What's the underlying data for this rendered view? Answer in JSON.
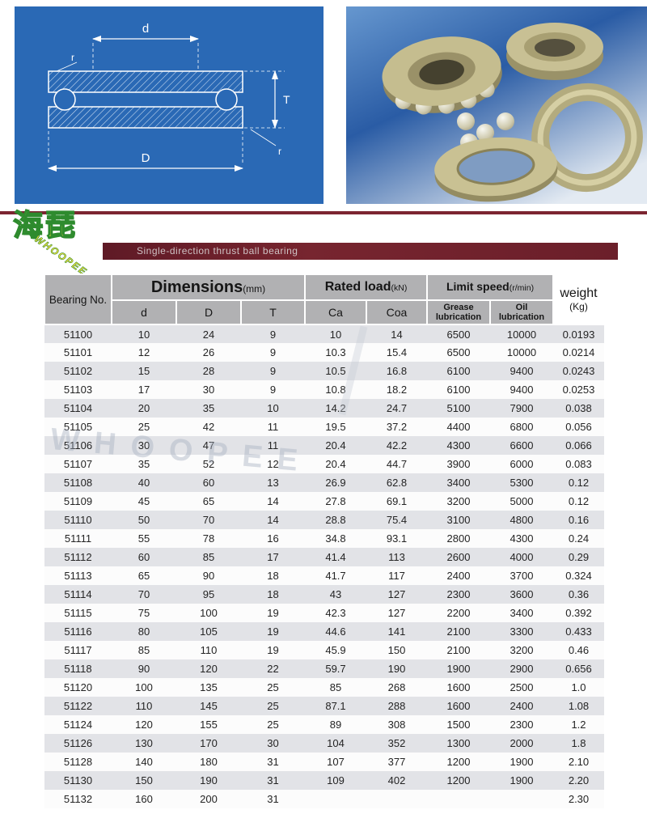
{
  "logo": {
    "characters": "海琵",
    "brand": "WHOOPEE"
  },
  "banner": {
    "text": "Single-direction thrust ball bearing"
  },
  "watermark": "WHOOPEE",
  "diagram": {
    "labels": {
      "d": "d",
      "r_top": "r",
      "T": "T",
      "r_bottom": "r",
      "D": "D"
    }
  },
  "table": {
    "headers": {
      "bearing_no": "Bearing No.",
      "dimensions": "Dimensions",
      "dimensions_unit": "(mm)",
      "rated_load": "Rated load",
      "rated_load_unit": "(kN)",
      "limit_speed": "Limit speed",
      "limit_speed_unit": "(r/min)",
      "weight": "weight",
      "weight_unit": "(Kg)",
      "col_d": "d",
      "col_D": "D",
      "col_T": "T",
      "col_ca": "Ca",
      "col_coa": "Coa",
      "col_grease_1": "Grease",
      "col_grease_2": "lubrication",
      "col_oil_1": "Oil",
      "col_oil_2": "lubrication"
    },
    "rows": [
      [
        "51100",
        "10",
        "24",
        "9",
        "10",
        "14",
        "6500",
        "10000",
        "0.0193"
      ],
      [
        "51101",
        "12",
        "26",
        "9",
        "10.3",
        "15.4",
        "6500",
        "10000",
        "0.0214"
      ],
      [
        "51102",
        "15",
        "28",
        "9",
        "10.5",
        "16.8",
        "6100",
        "9400",
        "0.0243"
      ],
      [
        "51103",
        "17",
        "30",
        "9",
        "10.8",
        "18.2",
        "6100",
        "9400",
        "0.0253"
      ],
      [
        "51104",
        "20",
        "35",
        "10",
        "14.2",
        "24.7",
        "5100",
        "7900",
        "0.038"
      ],
      [
        "51105",
        "25",
        "42",
        "11",
        "19.5",
        "37.2",
        "4400",
        "6800",
        "0.056"
      ],
      [
        "51106",
        "30",
        "47",
        "11",
        "20.4",
        "42.2",
        "4300",
        "6600",
        "0.066"
      ],
      [
        "51107",
        "35",
        "52",
        "12",
        "20.4",
        "44.7",
        "3900",
        "6000",
        "0.083"
      ],
      [
        "51108",
        "40",
        "60",
        "13",
        "26.9",
        "62.8",
        "3400",
        "5300",
        "0.12"
      ],
      [
        "51109",
        "45",
        "65",
        "14",
        "27.8",
        "69.1",
        "3200",
        "5000",
        "0.12"
      ],
      [
        "51110",
        "50",
        "70",
        "14",
        "28.8",
        "75.4",
        "3100",
        "4800",
        "0.16"
      ],
      [
        "51111",
        "55",
        "78",
        "16",
        "34.8",
        "93.1",
        "2800",
        "4300",
        "0.24"
      ],
      [
        "51112",
        "60",
        "85",
        "17",
        "41.4",
        "113",
        "2600",
        "4000",
        "0.29"
      ],
      [
        "51113",
        "65",
        "90",
        "18",
        "41.7",
        "117",
        "2400",
        "3700",
        "0.324"
      ],
      [
        "51114",
        "70",
        "95",
        "18",
        "43",
        "127",
        "2300",
        "3600",
        "0.36"
      ],
      [
        "51115",
        "75",
        "100",
        "19",
        "42.3",
        "127",
        "2200",
        "3400",
        "0.392"
      ],
      [
        "51116",
        "80",
        "105",
        "19",
        "44.6",
        "141",
        "2100",
        "3300",
        "0.433"
      ],
      [
        "51117",
        "85",
        "110",
        "19",
        "45.9",
        "150",
        "2100",
        "3200",
        "0.46"
      ],
      [
        "51118",
        "90",
        "120",
        "22",
        "59.7",
        "190",
        "1900",
        "2900",
        "0.656"
      ],
      [
        "51120",
        "100",
        "135",
        "25",
        "85",
        "268",
        "1600",
        "2500",
        "1.0"
      ],
      [
        "51122",
        "110",
        "145",
        "25",
        "87.1",
        "288",
        "1600",
        "2400",
        "1.08"
      ],
      [
        "51124",
        "120",
        "155",
        "25",
        "89",
        "308",
        "1500",
        "2300",
        "1.2"
      ],
      [
        "51126",
        "130",
        "170",
        "30",
        "104",
        "352",
        "1300",
        "2000",
        "1.8"
      ],
      [
        "51128",
        "140",
        "180",
        "31",
        "107",
        "377",
        "1200",
        "1900",
        "2.10"
      ],
      [
        "51130",
        "150",
        "190",
        "31",
        "109",
        "402",
        "1200",
        "1900",
        "2.20"
      ],
      [
        "51132",
        "160",
        "200",
        "31",
        "",
        "",
        "",
        "",
        "2.30"
      ]
    ]
  }
}
